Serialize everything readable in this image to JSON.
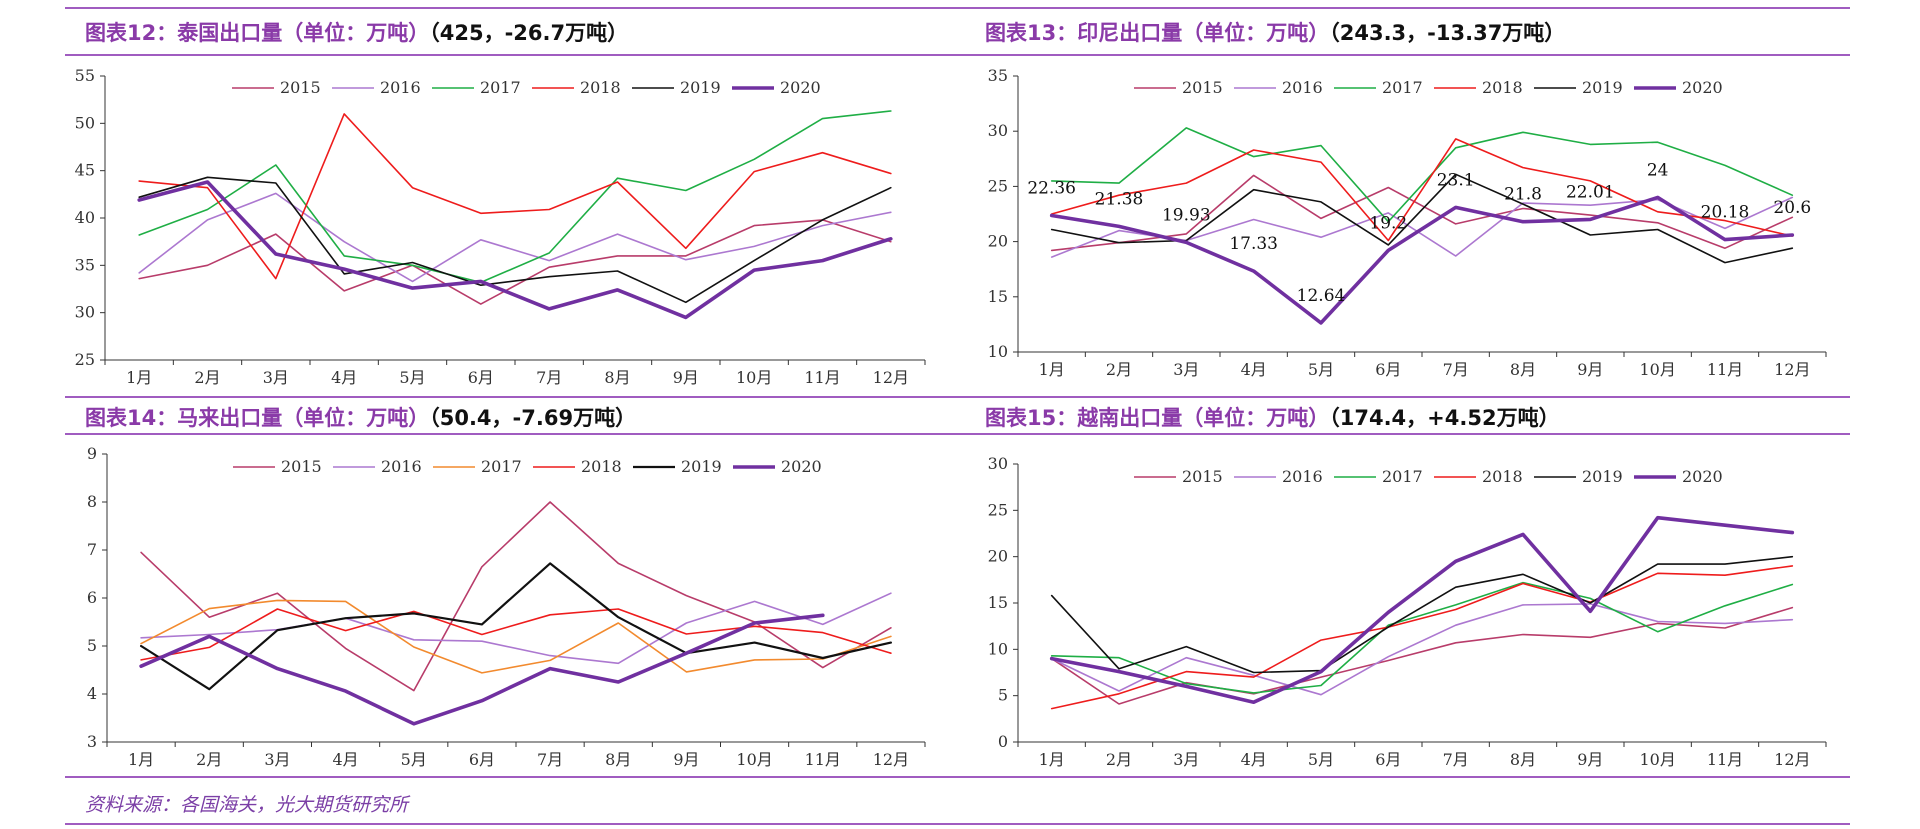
{
  "titles": {
    "thai": {
      "main": "图表12：泰国出口量（单位：万吨）",
      "sub": "（425，-26.7万吨）"
    },
    "indonesia": {
      "main": "图表13：印尼出口量（单位：万吨）",
      "sub": "（243.3，-13.37万吨）"
    },
    "malaysia": {
      "main": "图表14：马来出口量（单位：万吨）",
      "sub": "（50.4，-7.69万吨）"
    },
    "vietnam": {
      "main": "图表15：越南出口量（单位：万吨）",
      "sub": "（174.4，+4.52万吨）"
    }
  },
  "source": "资料来源：各国海关，光大期货研究所",
  "chart_data": [
    {
      "id": "thai",
      "type": "line",
      "categories": [
        "1月",
        "2月",
        "3月",
        "4月",
        "5月",
        "6月",
        "7月",
        "8月",
        "9月",
        "10月",
        "11月",
        "12月"
      ],
      "ylim": [
        25,
        55
      ],
      "yticks": [
        25,
        30,
        35,
        40,
        45,
        50,
        55
      ],
      "legend": "top",
      "series": [
        {
          "name": "2015",
          "color": "#b83c6a",
          "width": 1.6,
          "values": [
            33.6,
            35.0,
            38.3,
            32.3,
            35.0,
            30.9,
            34.8,
            36.0,
            36.0,
            39.2,
            39.8,
            37.5
          ]
        },
        {
          "name": "2016",
          "color": "#ac78d0",
          "width": 1.6,
          "values": [
            34.2,
            39.8,
            42.6,
            37.5,
            33.3,
            37.7,
            35.5,
            38.3,
            35.6,
            37.0,
            39.2,
            40.6
          ]
        },
        {
          "name": "2017",
          "color": "#1fae45",
          "width": 1.6,
          "values": [
            38.2,
            40.9,
            45.6,
            36.0,
            35.0,
            33.2,
            36.3,
            44.2,
            42.9,
            46.2,
            50.5,
            51.3
          ]
        },
        {
          "name": "2018",
          "color": "#ee1c1c",
          "width": 1.6,
          "values": [
            43.9,
            43.2,
            33.6,
            51.0,
            43.2,
            40.5,
            40.9,
            43.8,
            36.8,
            44.9,
            46.9,
            44.7
          ]
        },
        {
          "name": "2019",
          "color": "#111111",
          "width": 1.6,
          "values": [
            42.2,
            44.3,
            43.7,
            34.1,
            35.3,
            32.9,
            33.8,
            34.4,
            31.1,
            35.5,
            39.8,
            43.2
          ]
        },
        {
          "name": "2020",
          "color": "#7030a0",
          "width": 3.6,
          "values": [
            41.9,
            43.8,
            36.2,
            34.6,
            32.6,
            33.3,
            30.4,
            32.4,
            29.5,
            34.5,
            35.5,
            37.8
          ]
        }
      ],
      "data_labels": []
    },
    {
      "id": "indonesia",
      "type": "line",
      "categories": [
        "1月",
        "2月",
        "3月",
        "4月",
        "5月",
        "6月",
        "7月",
        "8月",
        "9月",
        "10月",
        "11月",
        "12月"
      ],
      "ylim": [
        10,
        35
      ],
      "yticks": [
        10,
        15,
        20,
        25,
        30,
        35
      ],
      "legend": "top",
      "series": [
        {
          "name": "2015",
          "color": "#b83c6a",
          "width": 1.6,
          "values": [
            19.2,
            19.9,
            20.7,
            26.0,
            22.1,
            24.9,
            21.6,
            23.0,
            22.4,
            21.7,
            19.4,
            22.2
          ]
        },
        {
          "name": "2016",
          "color": "#ac78d0",
          "width": 1.6,
          "values": [
            18.6,
            21.0,
            20.1,
            22.0,
            20.4,
            22.6,
            18.7,
            23.5,
            23.3,
            23.8,
            21.2,
            24.0
          ]
        },
        {
          "name": "2017",
          "color": "#1fae45",
          "width": 1.6,
          "values": [
            25.5,
            25.3,
            30.3,
            27.7,
            28.7,
            21.8,
            28.5,
            29.9,
            28.8,
            29.0,
            26.9,
            24.2
          ]
        },
        {
          "name": "2018",
          "color": "#ee1c1c",
          "width": 1.6,
          "values": [
            22.5,
            24.2,
            25.3,
            28.3,
            27.2,
            20.1,
            29.3,
            26.7,
            25.5,
            22.7,
            21.9,
            20.5
          ]
        },
        {
          "name": "2019",
          "color": "#111111",
          "width": 1.6,
          "values": [
            21.1,
            19.9,
            20.1,
            24.7,
            23.6,
            19.7,
            26.1,
            23.4,
            20.6,
            21.1,
            18.1,
            19.4
          ]
        },
        {
          "name": "2020",
          "color": "#7030a0",
          "width": 3.6,
          "values": [
            22.36,
            21.38,
            19.93,
            17.33,
            12.64,
            19.2,
            23.1,
            21.8,
            22.01,
            24,
            20.18,
            20.6
          ]
        }
      ],
      "data_labels": [
        "22.36",
        "21.38",
        "19.93",
        "17.33",
        "12.64",
        "19.2",
        "23.1",
        "21.8",
        "22.01",
        "24",
        "20.18",
        "20.6"
      ]
    },
    {
      "id": "malaysia",
      "type": "line",
      "categories": [
        "1月",
        "2月",
        "3月",
        "4月",
        "5月",
        "6月",
        "7月",
        "8月",
        "9月",
        "10月",
        "11月",
        "12月"
      ],
      "ylim": [
        3,
        9
      ],
      "yticks": [
        3,
        4,
        5,
        6,
        7,
        8,
        9
      ],
      "legend": "top",
      "series": [
        {
          "name": "2015",
          "color": "#b83c6a",
          "width": 1.6,
          "values": [
            6.95,
            5.6,
            6.1,
            4.95,
            4.07,
            6.65,
            8.0,
            6.72,
            6.05,
            5.5,
            4.55,
            5.38
          ]
        },
        {
          "name": "2016",
          "color": "#ac78d0",
          "width": 1.6,
          "values": [
            5.17,
            5.24,
            5.34,
            5.58,
            5.13,
            5.1,
            4.8,
            4.64,
            5.48,
            5.93,
            5.45,
            6.1
          ]
        },
        {
          "name": "2017",
          "color": "#f28a2e",
          "width": 1.6,
          "values": [
            5.05,
            5.78,
            5.95,
            5.93,
            4.98,
            4.44,
            4.7,
            5.48,
            4.46,
            4.71,
            4.73,
            5.2
          ]
        },
        {
          "name": "2018",
          "color": "#ee1c1c",
          "width": 1.6,
          "values": [
            4.71,
            4.97,
            5.77,
            5.32,
            5.72,
            5.24,
            5.65,
            5.77,
            5.25,
            5.41,
            5.28,
            4.85
          ]
        },
        {
          "name": "2019",
          "color": "#111111",
          "width": 2.2,
          "values": [
            5.0,
            4.1,
            5.33,
            5.58,
            5.68,
            5.45,
            6.72,
            5.6,
            4.85,
            5.07,
            4.75,
            5.07
          ]
        },
        {
          "name": "2020",
          "color": "#7030a0",
          "width": 3.6,
          "values": [
            4.58,
            5.2,
            4.53,
            4.06,
            3.38,
            3.86,
            4.53,
            4.25,
            4.85,
            5.48,
            5.64,
            null
          ]
        }
      ],
      "data_labels": []
    },
    {
      "id": "vietnam",
      "type": "line",
      "categories": [
        "1月",
        "2月",
        "3月",
        "4月",
        "5月",
        "6月",
        "7月",
        "8月",
        "9月",
        "10月",
        "11月",
        "12月"
      ],
      "ylim": [
        0,
        30
      ],
      "yticks": [
        0,
        5,
        10,
        15,
        20,
        25,
        30
      ],
      "legend": "top",
      "series": [
        {
          "name": "2015",
          "color": "#b83c6a",
          "width": 1.6,
          "values": [
            9.0,
            4.1,
            6.4,
            5.2,
            7.0,
            8.8,
            10.7,
            11.6,
            11.3,
            12.8,
            12.3,
            14.5
          ]
        },
        {
          "name": "2016",
          "color": "#ac78d0",
          "width": 1.6,
          "values": [
            9.0,
            5.5,
            9.1,
            7.2,
            5.1,
            9.2,
            12.6,
            14.8,
            14.9,
            13.0,
            12.8,
            13.2
          ]
        },
        {
          "name": "2017",
          "color": "#1fae45",
          "width": 1.6,
          "values": [
            9.3,
            9.1,
            6.3,
            5.3,
            6.1,
            12.6,
            14.8,
            17.2,
            15.5,
            11.9,
            14.7,
            17.0
          ]
        },
        {
          "name": "2018",
          "color": "#ee1c1c",
          "width": 1.6,
          "values": [
            3.6,
            5.2,
            7.6,
            7.0,
            11.0,
            12.4,
            14.3,
            17.1,
            15.1,
            18.2,
            18.0,
            19.0
          ]
        },
        {
          "name": "2019",
          "color": "#111111",
          "width": 1.6,
          "values": [
            15.8,
            7.9,
            10.3,
            7.5,
            7.7,
            12.4,
            16.7,
            18.1,
            15.0,
            19.2,
            19.2,
            20.0
          ]
        },
        {
          "name": "2020",
          "color": "#7030a0",
          "width": 3.6,
          "values": [
            9.0,
            7.6,
            6.0,
            4.3,
            7.6,
            14.0,
            19.5,
            22.4,
            14.1,
            24.2,
            23.4,
            22.6
          ]
        }
      ],
      "data_labels": []
    }
  ]
}
